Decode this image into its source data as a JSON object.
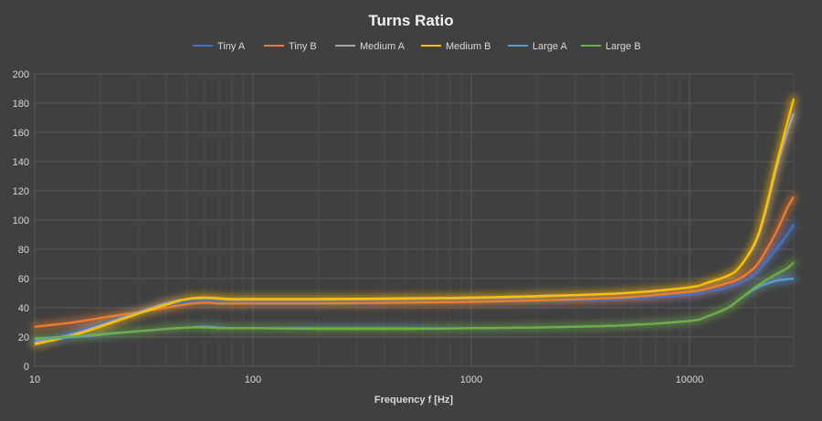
{
  "chart_data": {
    "type": "line",
    "title": "Turns Ratio",
    "xlabel": "Frequency f [Hz]",
    "ylabel": "",
    "x_scale": "log",
    "xlim": [
      10,
      30000
    ],
    "ylim": [
      0,
      200
    ],
    "y_ticks": [
      "0",
      "20",
      "40",
      "60",
      "80",
      "100",
      "120",
      "140",
      "160",
      "180",
      "200"
    ],
    "x_ticks": [
      "10",
      "100",
      "1000",
      "10000"
    ],
    "grid": true,
    "legend": "top",
    "x": [
      10,
      15,
      20,
      30,
      40,
      50,
      60,
      70,
      80,
      100,
      200,
      500,
      1000,
      2000,
      5000,
      10000,
      12000,
      15000,
      17000,
      20000,
      22000,
      25000,
      28000,
      30000
    ],
    "series": [
      {
        "name": "Tiny A",
        "color": "#4472c4",
        "values": [
          17,
          23,
          29,
          37,
          42,
          44,
          44.5,
          44,
          43.5,
          43.5,
          43.5,
          43.5,
          44,
          44.5,
          46,
          49,
          51,
          54,
          57,
          63,
          70,
          80,
          90,
          97
        ]
      },
      {
        "name": "Tiny B",
        "color": "#ed7d31",
        "values": [
          27,
          30,
          33,
          37,
          40,
          42.5,
          43.5,
          43,
          43,
          43,
          43,
          43.5,
          44,
          45,
          47,
          51,
          53,
          57,
          60,
          68,
          77,
          92,
          108,
          116
        ]
      },
      {
        "name": "Medium A",
        "color": "#a5a5a5",
        "values": [
          16,
          22,
          28,
          37,
          43,
          46,
          46.5,
          46,
          45.5,
          45.5,
          45.5,
          46,
          46.5,
          47.5,
          50,
          54,
          57,
          62,
          68,
          84,
          102,
          135,
          160,
          173
        ]
      },
      {
        "name": "Medium B",
        "color": "#ffc000",
        "values": [
          15,
          21,
          27,
          36,
          42,
          46,
          47,
          46.5,
          46,
          46,
          46,
          46.5,
          47,
          48,
          50,
          54,
          57,
          62,
          68,
          85,
          104,
          138,
          166,
          183
        ]
      },
      {
        "name": "Large A",
        "color": "#5b9bd5",
        "values": [
          18,
          20,
          21.5,
          24,
          25.5,
          26.5,
          27,
          26.5,
          26,
          26,
          26,
          26,
          26,
          26.5,
          28,
          31,
          34,
          40,
          46,
          53,
          56,
          58.5,
          59.5,
          60
        ]
      },
      {
        "name": "Large B",
        "color": "#70ad47",
        "values": [
          19,
          20.5,
          22,
          24,
          25.5,
          26.5,
          26.5,
          26,
          26,
          26,
          25.5,
          25.5,
          26,
          26.5,
          28,
          31,
          34,
          40,
          46,
          54,
          58,
          63,
          67,
          71
        ]
      }
    ]
  }
}
